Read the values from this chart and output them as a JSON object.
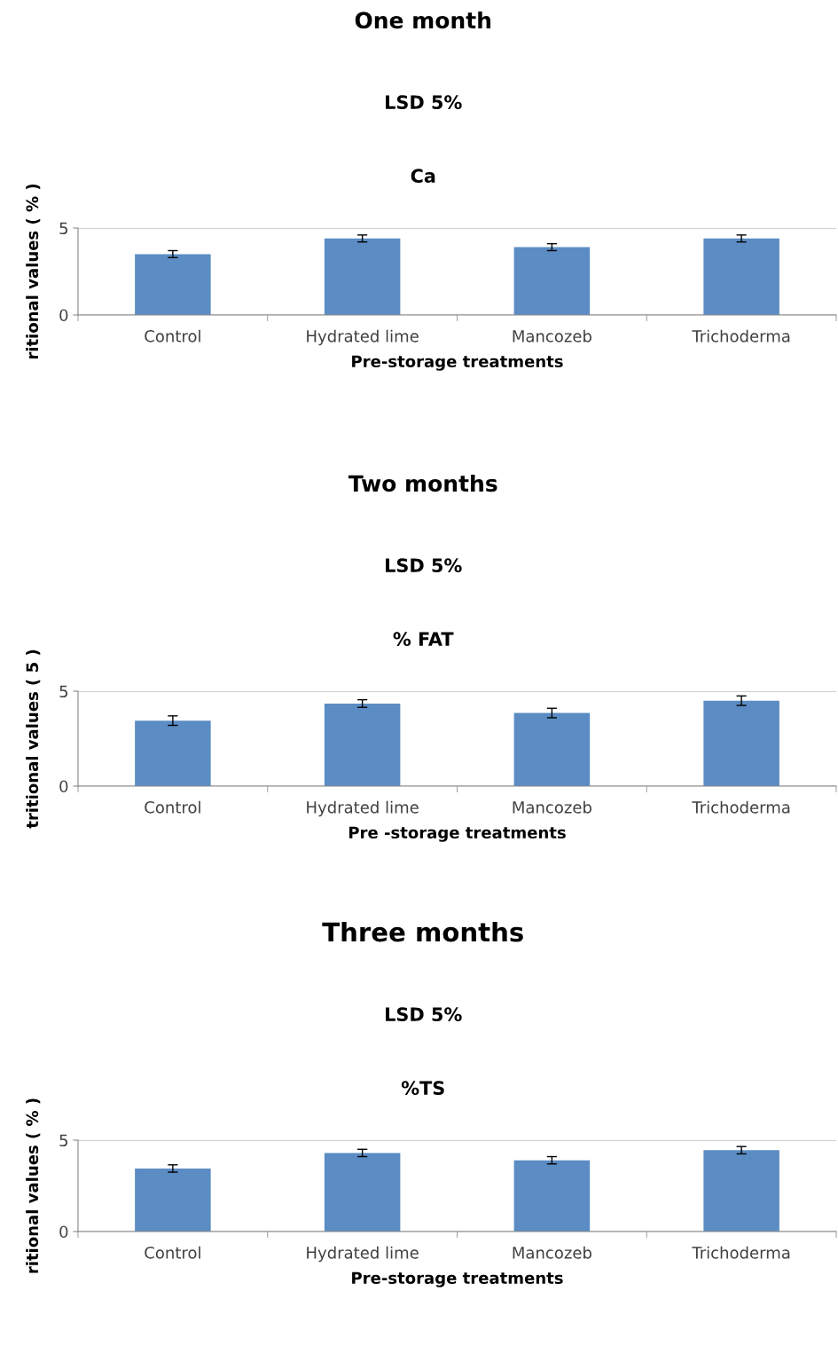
{
  "chart_data": [
    {
      "type": "bar",
      "title": "One month",
      "subtitle": "LSD 5%",
      "annotations": [
        "Ca"
      ],
      "xlabel": "Pre-storage treatments",
      "ylabel": "ritional values ( % )",
      "categories": [
        "Control",
        "Hydrated lime",
        "Mancozeb",
        "Trichoderma"
      ],
      "values": [
        3.5,
        4.4,
        3.9,
        4.4
      ],
      "errors": [
        0.2,
        0.2,
        0.2,
        0.2
      ],
      "color": "#5b8cc4",
      "ylim": [
        0,
        5
      ],
      "yticks": [
        0,
        5
      ],
      "grid": "y",
      "legend": false
    },
    {
      "type": "bar",
      "title": "Two months",
      "subtitle": "LSD 5%",
      "annotations": [
        "% FAT"
      ],
      "xlabel": "Pre -storage treatments",
      "ylabel": "tritional values ( 5 )",
      "categories": [
        "Control",
        "Hydrated lime",
        "Mancozeb",
        "Trichoderma"
      ],
      "values": [
        3.45,
        4.35,
        3.85,
        4.5
      ],
      "errors": [
        0.25,
        0.2,
        0.25,
        0.25
      ],
      "color": "#5b8cc4",
      "ylim": [
        0,
        5
      ],
      "yticks": [
        0,
        5
      ],
      "grid": "y",
      "legend": false
    },
    {
      "type": "bar",
      "title": "Three months",
      "subtitle": "LSD 5%",
      "annotations": [
        "%TS"
      ],
      "xlabel": "Pre-storage treatments",
      "ylabel": "ritional values ( % )",
      "categories": [
        "Control",
        "Hydrated lime",
        "Mancozeb",
        "Trichoderma"
      ],
      "values": [
        3.45,
        4.3,
        3.9,
        4.45
      ],
      "errors": [
        0.2,
        0.2,
        0.2,
        0.2
      ],
      "color": "#5b8cc4",
      "ylim": [
        0,
        5
      ],
      "yticks": [
        0,
        5
      ],
      "grid": "y",
      "legend": false
    }
  ]
}
